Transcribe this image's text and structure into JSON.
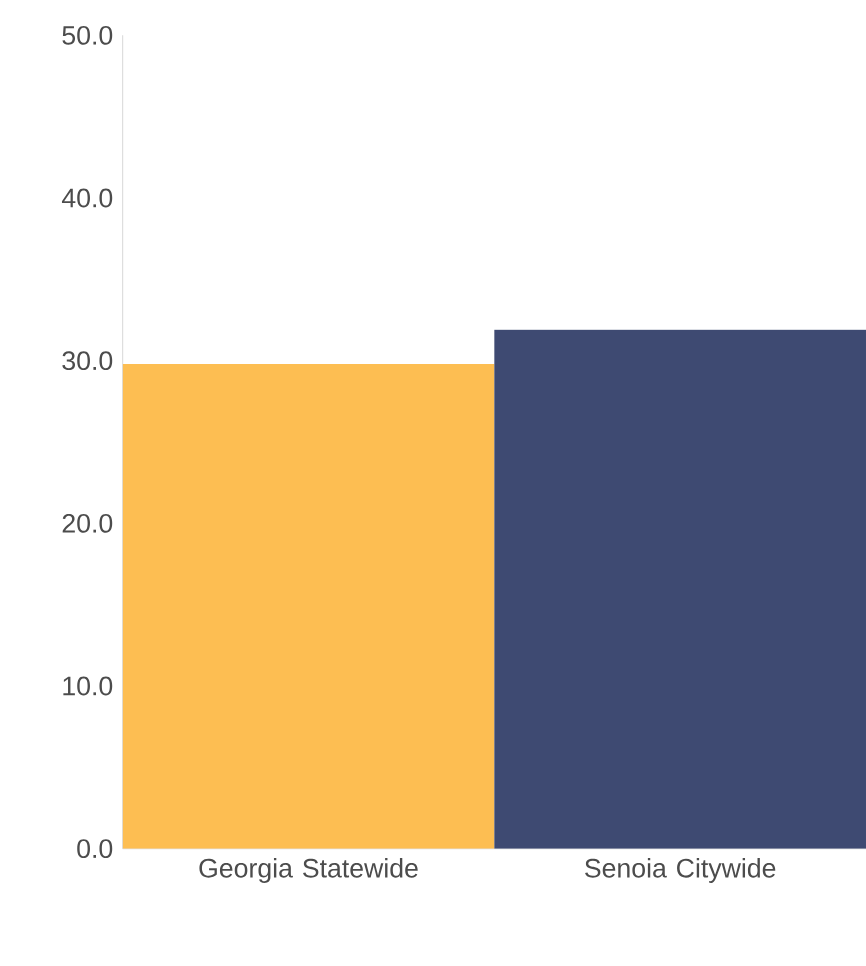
{
  "chart_data": {
    "type": "bar",
    "categories": [
      "Georgia Statewide",
      "Senoia Citywide"
    ],
    "values": [
      29.8,
      31.9
    ],
    "colors": [
      "#fdbe52",
      "#3e4a72"
    ],
    "ylim": [
      0,
      50
    ],
    "yticks": [
      {
        "value": 0,
        "label": "0.0"
      },
      {
        "value": 10,
        "label": "10.0"
      },
      {
        "value": 20,
        "label": "20.0"
      },
      {
        "value": 30,
        "label": "30.0"
      },
      {
        "value": 40,
        "label": "40.0"
      },
      {
        "value": 50,
        "label": "50.0"
      }
    ],
    "grid": false
  }
}
